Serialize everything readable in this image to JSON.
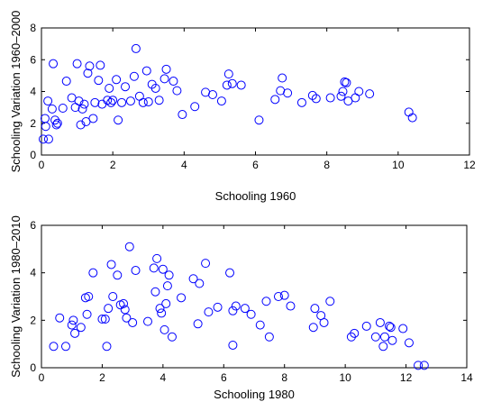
{
  "chart_data": [
    {
      "type": "scatter",
      "title": "",
      "xlabel": "Schooling 1960",
      "ylabel": "Schooling Variation 1960–2000",
      "xlim": [
        0,
        12
      ],
      "ylim": [
        0,
        8
      ],
      "xticks": [
        "0",
        "2",
        "4",
        "6",
        "8",
        "10",
        "12"
      ],
      "yticks": [
        "0",
        "2",
        "4",
        "6",
        "8"
      ],
      "grid": false,
      "marker": "open-circle",
      "marker_color": "#0000ff",
      "series": [
        {
          "points": [
            [
              0.05,
              1.0
            ],
            [
              0.1,
              2.3
            ],
            [
              0.12,
              1.8
            ],
            [
              0.18,
              3.4
            ],
            [
              0.2,
              1.0
            ],
            [
              0.3,
              2.9
            ],
            [
              0.33,
              5.75
            ],
            [
              0.38,
              2.2
            ],
            [
              0.42,
              1.9
            ],
            [
              0.45,
              2.0
            ],
            [
              0.6,
              2.95
            ],
            [
              0.7,
              4.65
            ],
            [
              0.85,
              3.6
            ],
            [
              0.95,
              3.0
            ],
            [
              1.0,
              5.75
            ],
            [
              1.05,
              3.4
            ],
            [
              1.1,
              1.9
            ],
            [
              1.15,
              2.9
            ],
            [
              1.2,
              3.2
            ],
            [
              1.25,
              2.1
            ],
            [
              1.3,
              5.15
            ],
            [
              1.35,
              5.6
            ],
            [
              1.45,
              2.3
            ],
            [
              1.5,
              3.3
            ],
            [
              1.6,
              4.7
            ],
            [
              1.65,
              5.65
            ],
            [
              1.7,
              3.2
            ],
            [
              1.85,
              3.45
            ],
            [
              1.9,
              4.2
            ],
            [
              1.95,
              3.3
            ],
            [
              2.0,
              3.45
            ],
            [
              2.1,
              4.75
            ],
            [
              2.15,
              2.2
            ],
            [
              2.25,
              3.3
            ],
            [
              2.35,
              4.3
            ],
            [
              2.5,
              3.4
            ],
            [
              2.6,
              4.95
            ],
            [
              2.65,
              6.7
            ],
            [
              2.75,
              3.7
            ],
            [
              2.85,
              3.3
            ],
            [
              2.95,
              5.3
            ],
            [
              3.0,
              3.35
            ],
            [
              3.1,
              4.45
            ],
            [
              3.2,
              4.2
            ],
            [
              3.3,
              3.45
            ],
            [
              3.45,
              4.8
            ],
            [
              3.5,
              5.4
            ],
            [
              3.7,
              4.65
            ],
            [
              3.8,
              4.05
            ],
            [
              3.95,
              2.55
            ],
            [
              4.3,
              3.05
            ],
            [
              4.6,
              3.95
            ],
            [
              4.8,
              3.8
            ],
            [
              5.05,
              3.4
            ],
            [
              5.2,
              4.4
            ],
            [
              5.25,
              5.1
            ],
            [
              5.35,
              4.5
            ],
            [
              5.6,
              4.4
            ],
            [
              6.1,
              2.2
            ],
            [
              6.55,
              3.5
            ],
            [
              6.7,
              4.05
            ],
            [
              6.75,
              4.85
            ],
            [
              6.9,
              3.9
            ],
            [
              7.3,
              3.3
            ],
            [
              7.6,
              3.75
            ],
            [
              7.7,
              3.55
            ],
            [
              8.1,
              3.6
            ],
            [
              8.4,
              3.7
            ],
            [
              8.45,
              4.0
            ],
            [
              8.5,
              4.6
            ],
            [
              8.55,
              4.55
            ],
            [
              8.6,
              3.4
            ],
            [
              8.8,
              3.6
            ],
            [
              8.9,
              4.0
            ],
            [
              9.2,
              3.85
            ],
            [
              10.3,
              2.7
            ],
            [
              10.4,
              2.35
            ]
          ]
        }
      ]
    },
    {
      "type": "scatter",
      "title": "",
      "xlabel": "Schooling 1980",
      "ylabel": "Schooling Variation 1980–2010",
      "xlim": [
        0,
        14
      ],
      "ylim": [
        0,
        6
      ],
      "xticks": [
        "0",
        "2",
        "4",
        "6",
        "8",
        "10",
        "12",
        "14"
      ],
      "yticks": [
        "0",
        "2",
        "4",
        "6"
      ],
      "grid": false,
      "marker": "open-circle",
      "marker_color": "#0000ff",
      "series": [
        {
          "points": [
            [
              0.4,
              0.9
            ],
            [
              0.6,
              2.1
            ],
            [
              0.8,
              0.9
            ],
            [
              1.0,
              1.8
            ],
            [
              1.05,
              2.0
            ],
            [
              1.1,
              1.45
            ],
            [
              1.3,
              1.7
            ],
            [
              1.45,
              2.95
            ],
            [
              1.5,
              2.25
            ],
            [
              1.55,
              3.0
            ],
            [
              1.7,
              4.0
            ],
            [
              2.0,
              2.05
            ],
            [
              2.1,
              2.05
            ],
            [
              2.2,
              2.5
            ],
            [
              2.15,
              0.9
            ],
            [
              2.3,
              4.35
            ],
            [
              2.35,
              3.0
            ],
            [
              2.5,
              3.9
            ],
            [
              2.6,
              2.65
            ],
            [
              2.7,
              2.7
            ],
            [
              2.75,
              2.45
            ],
            [
              2.8,
              2.1
            ],
            [
              2.9,
              5.1
            ],
            [
              3.0,
              1.9
            ],
            [
              3.1,
              4.1
            ],
            [
              3.5,
              1.95
            ],
            [
              3.7,
              4.2
            ],
            [
              3.75,
              3.2
            ],
            [
              3.8,
              4.6
            ],
            [
              3.9,
              2.5
            ],
            [
              3.95,
              2.3
            ],
            [
              4.0,
              4.15
            ],
            [
              4.05,
              1.6
            ],
            [
              4.1,
              2.7
            ],
            [
              4.15,
              3.45
            ],
            [
              4.2,
              3.9
            ],
            [
              4.3,
              1.3
            ],
            [
              4.6,
              2.95
            ],
            [
              5.0,
              3.75
            ],
            [
              5.15,
              1.85
            ],
            [
              5.2,
              3.55
            ],
            [
              5.4,
              4.4
            ],
            [
              5.5,
              2.35
            ],
            [
              5.8,
              2.55
            ],
            [
              6.2,
              4.0
            ],
            [
              6.3,
              0.95
            ],
            [
              6.3,
              2.4
            ],
            [
              6.4,
              2.6
            ],
            [
              6.7,
              2.5
            ],
            [
              6.9,
              2.25
            ],
            [
              7.2,
              1.8
            ],
            [
              7.4,
              2.8
            ],
            [
              7.5,
              1.3
            ],
            [
              7.8,
              3.0
            ],
            [
              8.0,
              3.05
            ],
            [
              8.2,
              2.6
            ],
            [
              8.95,
              1.7
            ],
            [
              9.0,
              2.5
            ],
            [
              9.2,
              2.2
            ],
            [
              9.3,
              1.9
            ],
            [
              9.5,
              2.8
            ],
            [
              10.2,
              1.3
            ],
            [
              10.3,
              1.45
            ],
            [
              10.7,
              1.75
            ],
            [
              11.0,
              1.3
            ],
            [
              11.15,
              1.9
            ],
            [
              11.25,
              0.9
            ],
            [
              11.3,
              1.3
            ],
            [
              11.45,
              1.75
            ],
            [
              11.5,
              1.7
            ],
            [
              11.55,
              1.15
            ],
            [
              11.9,
              1.65
            ],
            [
              12.1,
              1.05
            ],
            [
              12.4,
              0.1
            ],
            [
              12.6,
              0.1
            ]
          ]
        }
      ]
    }
  ]
}
